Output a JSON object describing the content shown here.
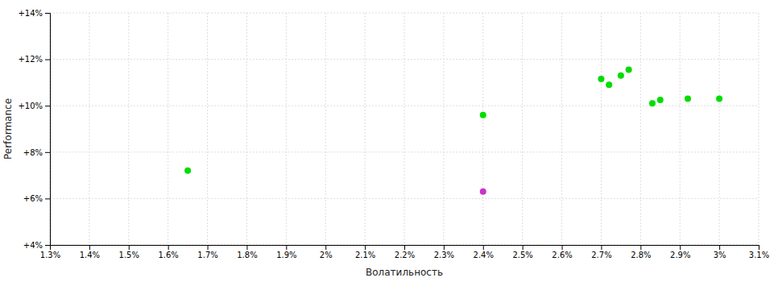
{
  "chart_data": {
    "type": "scatter",
    "xlabel": "Волатильность",
    "ylabel": "Performance",
    "xlim": [
      0.013,
      0.031
    ],
    "ylim": [
      0.04,
      0.14
    ],
    "xticks": [
      {
        "value": 0.013,
        "label": "1.3%"
      },
      {
        "value": 0.014,
        "label": "1.4%"
      },
      {
        "value": 0.015,
        "label": "1.5%"
      },
      {
        "value": 0.016,
        "label": "1.6%"
      },
      {
        "value": 0.017,
        "label": "1.7%"
      },
      {
        "value": 0.018,
        "label": "1.8%"
      },
      {
        "value": 0.019,
        "label": "1.9%"
      },
      {
        "value": 0.02,
        "label": "2%"
      },
      {
        "value": 0.021,
        "label": "2.1%"
      },
      {
        "value": 0.022,
        "label": "2.2%"
      },
      {
        "value": 0.023,
        "label": "2.3%"
      },
      {
        "value": 0.024,
        "label": "2.4%"
      },
      {
        "value": 0.025,
        "label": "2.5%"
      },
      {
        "value": 0.026,
        "label": "2.6%"
      },
      {
        "value": 0.027,
        "label": "2.7%"
      },
      {
        "value": 0.028,
        "label": "2.8%"
      },
      {
        "value": 0.029,
        "label": "2.9%"
      },
      {
        "value": 0.03,
        "label": "3%"
      },
      {
        "value": 0.031,
        "label": "3.1%"
      }
    ],
    "yticks": [
      {
        "value": 0.04,
        "label": "+4%"
      },
      {
        "value": 0.06,
        "label": "+6%"
      },
      {
        "value": 0.08,
        "label": "+8%"
      },
      {
        "value": 0.1,
        "label": "+10%"
      },
      {
        "value": 0.12,
        "label": "+12%"
      },
      {
        "value": 0.14,
        "label": "+14%"
      }
    ],
    "grid": true,
    "series": [
      {
        "color": "#00dd00",
        "x": [
          0.0165,
          0.024,
          0.027,
          0.0272,
          0.0275,
          0.0277,
          0.0283,
          0.0285,
          0.0292,
          0.03
        ],
        "values": [
          0.072,
          0.096,
          0.1115,
          0.109,
          0.113,
          0.1155,
          0.101,
          0.1025,
          0.103,
          0.103
        ]
      },
      {
        "color": "#cc33cc",
        "x": [
          0.024
        ],
        "values": [
          0.063
        ]
      }
    ]
  }
}
